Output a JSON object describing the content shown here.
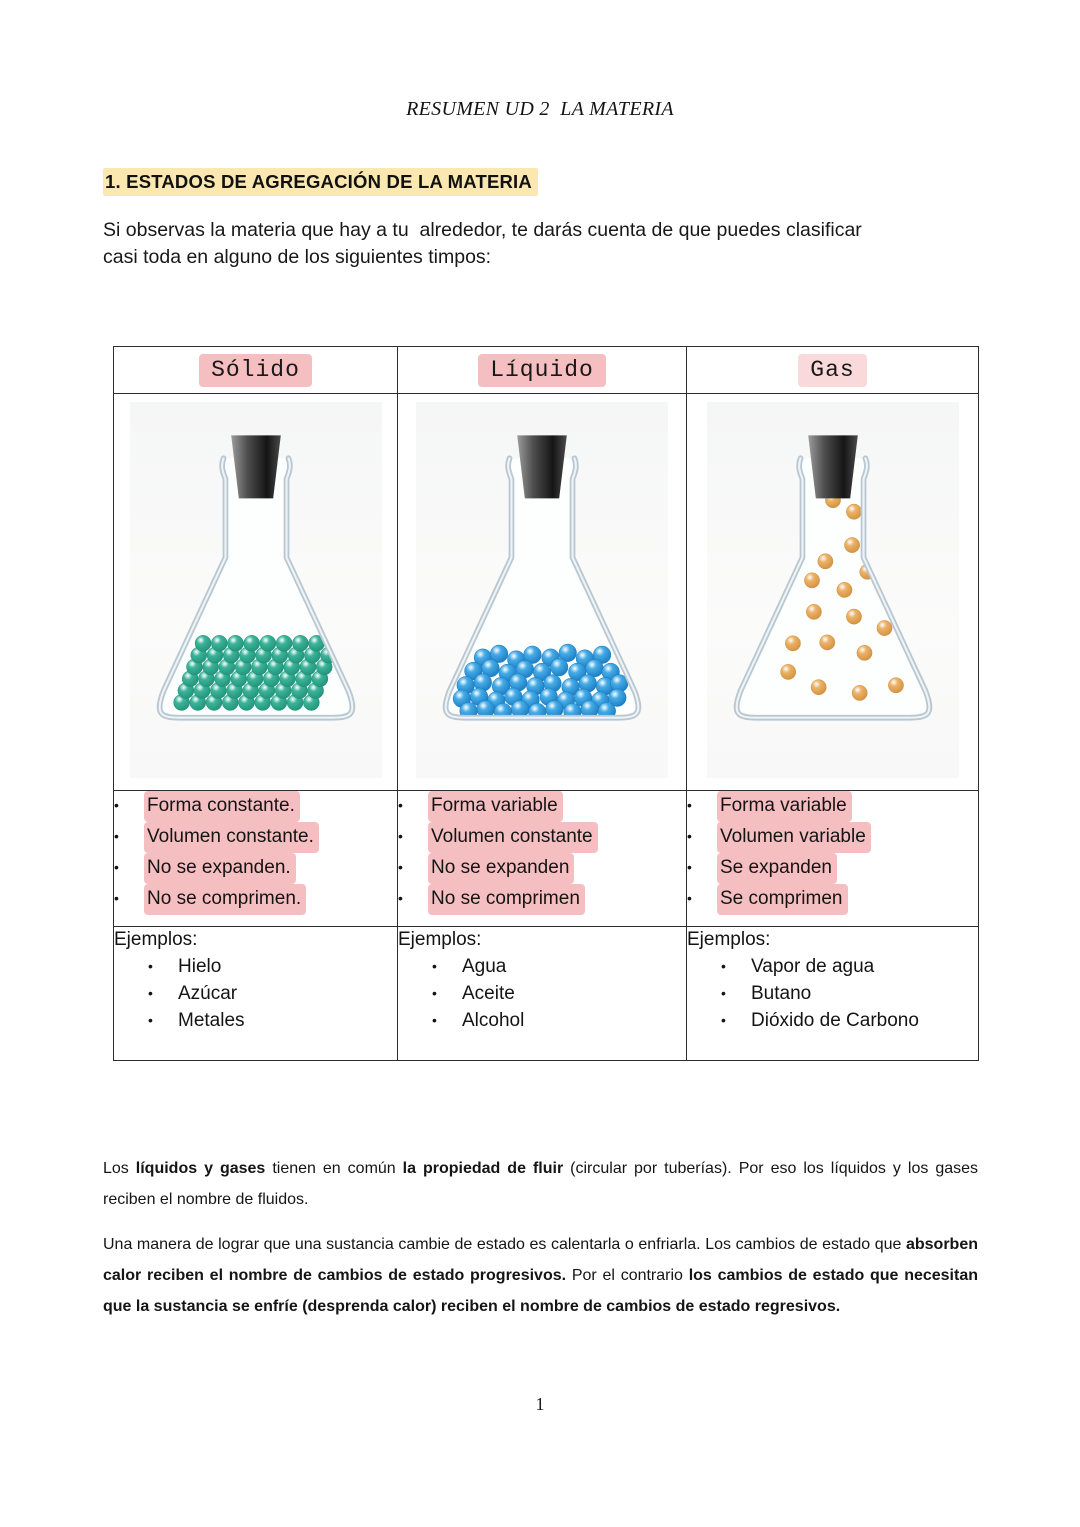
{
  "doc": {
    "title": "RESUMEN UD 2  LA MATERIA",
    "heading": "1. ESTADOS DE AGREGACIÓN DE LA MATERIA",
    "intro": "Si observas la materia que hay a tu  alrededor, te darás cuenta de que puedes clasificar\ncasi toda en alguno de los siguientes timpos:",
    "page_number": "1"
  },
  "table": {
    "columns": [
      {
        "header": "Sólido",
        "header_highlight": "pink",
        "properties": [
          "Forma constante.",
          "Volumen constante.",
          "No se expanden.",
          "No se comprimen."
        ],
        "examples_label": "Ejemplos:",
        "examples": [
          "Hielo",
          "Azúcar",
          "Metales"
        ]
      },
      {
        "header": "Líquido",
        "header_highlight": "pink",
        "properties": [
          "Forma variable",
          "Volumen constante",
          "No se expanden",
          "No se comprimen"
        ],
        "examples_label": "Ejemplos:",
        "examples": [
          "Agua",
          "Aceite",
          "Alcohol"
        ]
      },
      {
        "header": "Gas",
        "header_highlight": "pink-light",
        "properties": [
          "Forma variable",
          "Volumen variable",
          "Se expanden",
          "Se comprimen"
        ],
        "examples_label": "Ejemplos:",
        "examples": [
          "Vapor de agua",
          "Butano",
          "Dióxido de Carbono"
        ]
      }
    ]
  },
  "flasks": {
    "glass_color": "#b9c7d1",
    "stopper_color": "#151515",
    "solid": {
      "particle_color": "#3cb49a",
      "particle_dark": "#1f8f77",
      "arrangement": "ordered-grid"
    },
    "liquid": {
      "particle_color": "#45abe7",
      "particle_dark": "#1677bd",
      "arrangement": "packed-bottom"
    },
    "gas": {
      "particle_color": "#ecb269",
      "particle_dark": "#cf8f3a",
      "arrangement": "scattered"
    }
  },
  "paragraphs": {
    "p1": [
      {
        "text": "Los ",
        "bold": false
      },
      {
        "text": "líquidos y gases",
        "bold": true
      },
      {
        "text": " tienen en común ",
        "bold": false
      },
      {
        "text": "la propiedad de fluir",
        "bold": true
      },
      {
        "text": " (circular por tuberías). Por eso los líquidos y los gases reciben el nombre de fluidos.",
        "bold": false
      }
    ],
    "p2": [
      {
        "text": "Una manera  de lograr que una sustancia cambie de estado es calentarla o enfriarla. Los cambios de estado que ",
        "bold": false
      },
      {
        "text": "absorben calor reciben el nombre de cambios de estado progresivos.",
        "bold": true
      },
      {
        "text": " Por el contrario ",
        "bold": false
      },
      {
        "text": "los cambios de estado que necesitan que la sustancia se enfríe (desprenda calor) reciben el nombre de cambios de estado regresivos.",
        "bold": true
      }
    ]
  },
  "highlight_colors": {
    "pink": "#f5bfc2",
    "pink_light": "#f9d9da",
    "yellow": "#fbe8b0"
  }
}
